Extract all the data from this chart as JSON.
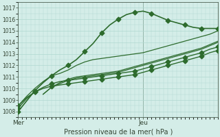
{
  "xlabel": "Pression niveau de la mer( hPa )",
  "bg_color": "#d4ede8",
  "grid_color": "#b0d8d0",
  "line_color": "#2d6b2d",
  "xlim": [
    0,
    48
  ],
  "ylim": [
    1007.5,
    1017.5
  ],
  "yticks": [
    1008,
    1009,
    1010,
    1011,
    1012,
    1013,
    1014,
    1015,
    1016,
    1017
  ],
  "xtick_labels": [
    "Mer",
    "Jeu"
  ],
  "xtick_positions": [
    0,
    30
  ],
  "vline_x": 30,
  "series": [
    {
      "x": [
        0,
        2,
        4,
        6,
        8,
        10,
        12,
        14,
        16,
        18,
        20,
        22,
        24,
        26,
        28,
        30,
        32,
        34,
        36,
        38,
        40,
        42,
        44,
        46,
        48
      ],
      "y": [
        1008.0,
        1008.9,
        1009.8,
        1010.5,
        1011.1,
        1011.6,
        1012.0,
        1012.5,
        1013.2,
        1013.9,
        1014.8,
        1015.5,
        1016.0,
        1016.4,
        1016.6,
        1016.7,
        1016.5,
        1016.2,
        1015.9,
        1015.7,
        1015.5,
        1015.3,
        1015.2,
        1015.2,
        1015.2
      ],
      "marker": true,
      "lw": 1.2
    },
    {
      "x": [
        0,
        2,
        4,
        6,
        8,
        10,
        12,
        14,
        16,
        18,
        20,
        22,
        24,
        26,
        28,
        30,
        32,
        34,
        36,
        38,
        40,
        42,
        44,
        46,
        48
      ],
      "y": [
        1008.5,
        1009.3,
        1010.0,
        1010.6,
        1011.1,
        1011.3,
        1011.6,
        1012.0,
        1012.3,
        1012.5,
        1012.6,
        1012.7,
        1012.8,
        1012.9,
        1013.0,
        1013.1,
        1013.3,
        1013.5,
        1013.7,
        1013.9,
        1014.1,
        1014.3,
        1014.5,
        1014.7,
        1015.0
      ],
      "marker": false,
      "lw": 0.9
    },
    {
      "x": [
        6,
        8,
        10,
        12,
        14,
        16,
        18,
        20,
        22,
        24,
        26,
        28,
        30,
        32,
        34,
        36,
        38,
        40,
        42,
        44,
        46,
        48
      ],
      "y": [
        1009.5,
        1010.1,
        1010.5,
        1010.8,
        1011.0,
        1011.1,
        1011.2,
        1011.3,
        1011.4,
        1011.5,
        1011.7,
        1011.9,
        1012.1,
        1012.3,
        1012.5,
        1012.7,
        1012.9,
        1013.1,
        1013.3,
        1013.5,
        1013.8,
        1014.1
      ],
      "marker": false,
      "lw": 0.9
    },
    {
      "x": [
        6,
        8,
        10,
        12,
        14,
        16,
        18,
        20,
        22,
        24,
        26,
        28,
        30,
        32,
        34,
        36,
        38,
        40,
        42,
        44,
        46,
        48
      ],
      "y": [
        1009.5,
        1010.1,
        1010.4,
        1010.7,
        1010.9,
        1011.0,
        1011.1,
        1011.2,
        1011.3,
        1011.4,
        1011.6,
        1011.8,
        1012.0,
        1012.2,
        1012.4,
        1012.6,
        1012.8,
        1013.0,
        1013.2,
        1013.4,
        1013.7,
        1014.0
      ],
      "marker": false,
      "lw": 0.9
    },
    {
      "x": [
        0,
        2,
        4,
        6,
        8,
        10,
        12,
        14,
        16,
        18,
        20,
        22,
        24,
        26,
        28,
        30,
        32,
        34,
        36,
        38,
        40,
        42,
        44,
        46,
        48
      ],
      "y": [
        1008.3,
        1009.1,
        1009.7,
        1010.1,
        1010.4,
        1010.6,
        1010.7,
        1010.8,
        1010.9,
        1011.0,
        1011.1,
        1011.2,
        1011.3,
        1011.4,
        1011.5,
        1011.7,
        1011.9,
        1012.1,
        1012.3,
        1012.5,
        1012.7,
        1012.9,
        1013.1,
        1013.4,
        1013.6
      ],
      "marker": true,
      "lw": 1.0
    },
    {
      "x": [
        0,
        2,
        4,
        6,
        8,
        10,
        12,
        14,
        16,
        18,
        20,
        22,
        24,
        26,
        28,
        30,
        32,
        34,
        36,
        38,
        40,
        42,
        44,
        46,
        48
      ],
      "y": [
        1008.5,
        1009.2,
        1009.7,
        1010.0,
        1010.2,
        1010.3,
        1010.4,
        1010.5,
        1010.6,
        1010.7,
        1010.8,
        1010.9,
        1011.0,
        1011.1,
        1011.2,
        1011.4,
        1011.6,
        1011.8,
        1012.0,
        1012.2,
        1012.4,
        1012.6,
        1012.8,
        1013.1,
        1013.3
      ],
      "marker": true,
      "lw": 1.0
    }
  ],
  "marker": "D",
  "marker_size": 3.5
}
